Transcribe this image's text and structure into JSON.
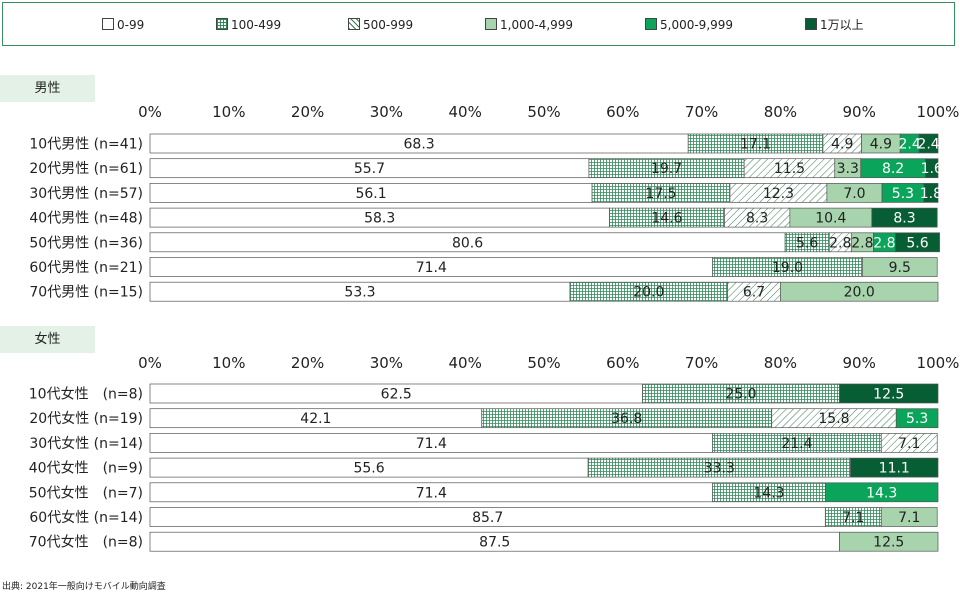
{
  "legend": {
    "items": [
      {
        "label": "0-99",
        "fill": "white"
      },
      {
        "label": "100-499",
        "fill": "grid"
      },
      {
        "label": "500-999",
        "fill": "hatch"
      },
      {
        "label": "1,000-4,999",
        "fill": "#a8d4ad"
      },
      {
        "label": "5,000-9,999",
        "fill": "#0aa55a"
      },
      {
        "label": "1万以上",
        "fill": "#075e34"
      }
    ]
  },
  "source": "出典: 2021年一般向けモバイル動向調査",
  "chart_data": [
    {
      "type": "bar",
      "orientation": "horizontal",
      "stacked": true,
      "title": "男性",
      "xlim": [
        0,
        100
      ],
      "ticks": [
        "0%",
        "10%",
        "20%",
        "30%",
        "40%",
        "50%",
        "60%",
        "70%",
        "80%",
        "90%",
        "100%"
      ],
      "categories": [
        "10代男性 (n=41)",
        "20代男性 (n=61)",
        "30代男性 (n=57)",
        "40代男性 (n=48)",
        "50代男性 (n=36)",
        "60代男性 (n=21)",
        "70代男性 (n=15)"
      ],
      "series": [
        {
          "name": "0-99",
          "values": [
            68.3,
            55.7,
            56.1,
            58.3,
            80.6,
            71.4,
            53.3
          ]
        },
        {
          "name": "100-499",
          "values": [
            17.1,
            19.7,
            17.5,
            14.6,
            5.6,
            19.0,
            20.0
          ]
        },
        {
          "name": "500-999",
          "values": [
            4.9,
            11.5,
            12.3,
            8.3,
            2.8,
            0,
            6.7
          ]
        },
        {
          "name": "1,000-4,999",
          "values": [
            4.9,
            3.3,
            7.0,
            10.4,
            2.8,
            9.5,
            20.0
          ]
        },
        {
          "name": "5,000-9,999",
          "values": [
            2.4,
            8.2,
            5.3,
            0,
            2.8,
            0,
            0
          ]
        },
        {
          "name": "1万以上",
          "values": [
            2.4,
            1.6,
            1.8,
            8.3,
            5.6,
            0,
            0
          ]
        }
      ]
    },
    {
      "type": "bar",
      "orientation": "horizontal",
      "stacked": true,
      "title": "女性",
      "xlim": [
        0,
        100
      ],
      "ticks": [
        "0%",
        "10%",
        "20%",
        "30%",
        "40%",
        "50%",
        "60%",
        "70%",
        "80%",
        "90%",
        "100%"
      ],
      "categories": [
        "10代女性　(n=8)",
        "20代女性 (n=19)",
        "30代女性 (n=14)",
        "40代女性　(n=9)",
        "50代女性　(n=7)",
        "60代女性 (n=14)",
        "70代女性　(n=8)"
      ],
      "series": [
        {
          "name": "0-99",
          "values": [
            62.5,
            42.1,
            71.4,
            55.6,
            71.4,
            85.7,
            87.5
          ]
        },
        {
          "name": "100-499",
          "values": [
            25.0,
            36.8,
            21.4,
            33.3,
            14.3,
            7.1,
            0
          ]
        },
        {
          "name": "500-999",
          "values": [
            0,
            15.8,
            7.1,
            0,
            0,
            0,
            0
          ]
        },
        {
          "name": "1,000-4,999",
          "values": [
            0,
            0,
            0,
            0,
            0,
            7.1,
            12.5
          ]
        },
        {
          "name": "5,000-9,999",
          "values": [
            0,
            5.3,
            0,
            0,
            14.3,
            0,
            0
          ]
        },
        {
          "name": "1万以上",
          "values": [
            12.5,
            0,
            0,
            11.1,
            0,
            0,
            0
          ]
        }
      ]
    }
  ]
}
